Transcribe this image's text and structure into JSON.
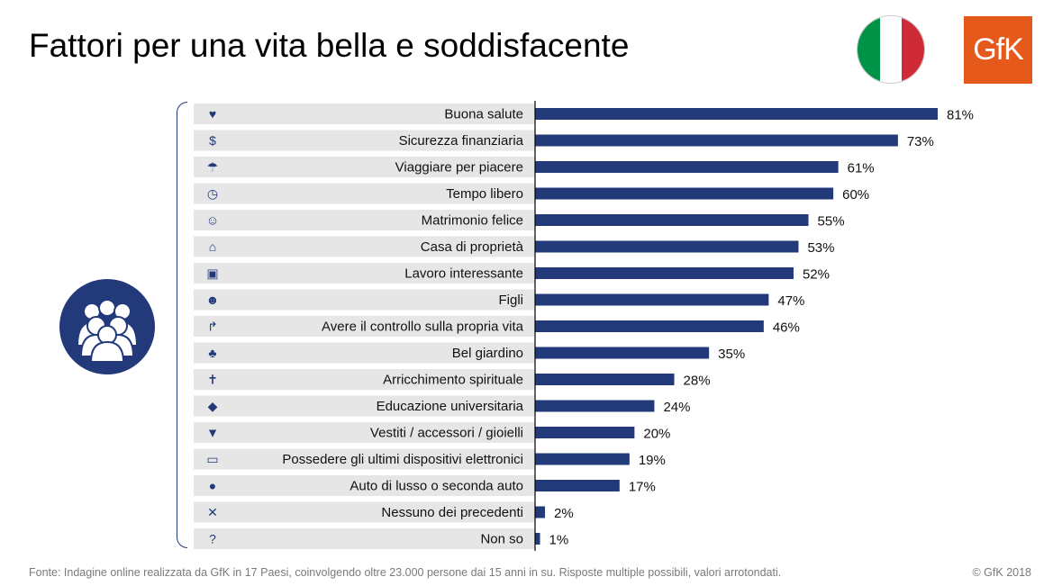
{
  "title": "Fattori per una vita bella e soddisfacente",
  "logo_text": "GfK",
  "flag_colors": [
    "#009246",
    "#ffffff",
    "#ce2b37"
  ],
  "footer": "Fonte: Indagine online realizzata da GfK in 17 Paesi, coinvolgendo oltre 23.000 persone dai 15 anni in su. Risposte multiple possibili, valori arrotondati.",
  "copyright": "© GfK 2018",
  "colors": {
    "bar": "#22397a",
    "row_bg": "#e6e6e6",
    "icon": "#22397a"
  },
  "chart_data": {
    "type": "bar",
    "orientation": "horizontal",
    "categories": [
      "Buona salute",
      "Sicurezza finanziaria",
      "Viaggiare per piacere",
      "Tempo libero",
      "Matrimonio felice",
      "Casa di proprietà",
      "Lavoro interessante",
      "Figli",
      "Avere il controllo sulla propria vita",
      "Bel giardino",
      "Arricchimento spirituale",
      "Educazione universitaria",
      "Vestiti / accessori / gioielli",
      "Possedere gli ultimi dispositivi elettronici",
      "Auto di lusso o seconda auto",
      "Nessuno dei precedenti",
      "Non so"
    ],
    "values": [
      81,
      73,
      61,
      60,
      55,
      53,
      52,
      47,
      46,
      35,
      28,
      24,
      20,
      19,
      17,
      2,
      1
    ],
    "value_labels": [
      "81%",
      "73%",
      "61%",
      "60%",
      "55%",
      "53%",
      "52%",
      "47%",
      "46%",
      "35%",
      "28%",
      "24%",
      "20%",
      "19%",
      "17%",
      "2%",
      "1%"
    ],
    "icons": [
      "heart-pulse-icon",
      "money-icon",
      "palm-tree-icon",
      "clock-icon",
      "couple-icon",
      "house-icon",
      "briefcase-icon",
      "children-icon",
      "signpost-icon",
      "tree-icon",
      "book-icon",
      "graduation-cap-icon",
      "clothes-icon",
      "devices-icon",
      "car-icon",
      "close-icon",
      "question-icon"
    ],
    "xlim": [
      0,
      100
    ],
    "grid": false,
    "legend": false
  }
}
